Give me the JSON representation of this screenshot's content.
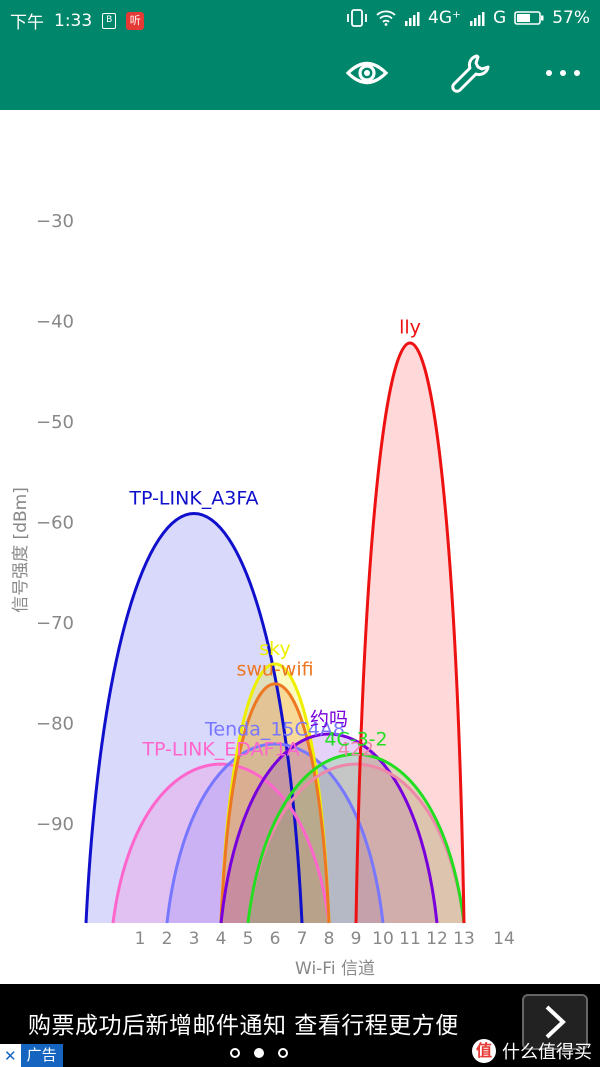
{
  "status": {
    "time_prefix": "下午",
    "time": "1:33",
    "sim_badge": "B",
    "app_badge": "听",
    "net_4g": "4G⁺",
    "net_g": "G",
    "battery": "57%"
  },
  "toolbar": {
    "icons": [
      "eye-icon",
      "wrench-icon",
      "more-icon"
    ]
  },
  "chart_data": {
    "type": "area",
    "ylabel": "信号强度 [dBm]",
    "xlabel": "Wi-Fi 信道",
    "y_ticks": [
      "−30",
      "−40",
      "−50",
      "−60",
      "−70",
      "−80",
      "−90"
    ],
    "y_tick_values": [
      -30,
      -40,
      -50,
      -60,
      -70,
      -80,
      -90
    ],
    "x_ticks": [
      "1",
      "2",
      "3",
      "4",
      "5",
      "6",
      "7",
      "8",
      "9",
      "10",
      "11",
      "12",
      "13",
      "14"
    ],
    "x_tick_values": [
      1,
      2,
      3,
      4,
      5,
      6,
      7,
      8,
      9,
      10,
      11,
      12,
      13,
      14
    ],
    "ylim": [
      -100,
      -25
    ],
    "xlim": [
      -2,
      16
    ],
    "series": [
      {
        "name": "TP-LINK_A3FA",
        "channel": 3,
        "dbm": -59,
        "from": -1,
        "to": 7,
        "color": "#1010cc",
        "fill": "rgba(80,80,240,0.22)"
      },
      {
        "name": "TP-LINK_EDAF1A",
        "channel": 4,
        "dbm": -84,
        "from": 0,
        "to": 8,
        "color": "#ff66cc",
        "fill": "rgba(255,102,204,0.20)"
      },
      {
        "name": "Tenda_15C4A8",
        "channel": 6,
        "dbm": -82,
        "from": 2,
        "to": 10,
        "color": "#7777ff",
        "fill": "rgba(119,119,255,0.20)"
      },
      {
        "name": "sky",
        "channel": 6,
        "dbm": -74,
        "from": 4,
        "to": 8,
        "color": "#eeee00",
        "fill": "rgba(240,240,0,0.25)"
      },
      {
        "name": "swu-wifi",
        "channel": 6,
        "dbm": -76,
        "from": 4,
        "to": 8,
        "color": "#ee7722",
        "fill": "rgba(238,119,34,0.25)"
      },
      {
        "name": "约吗",
        "channel": 8,
        "dbm": -81,
        "from": 4,
        "to": 12,
        "color": "#7700dd",
        "fill": "rgba(119,0,221,0.18)"
      },
      {
        "name": "422",
        "channel": 9,
        "dbm": -84,
        "from": 5,
        "to": 13,
        "color": "#ee88aa",
        "fill": "rgba(238,136,170,0.20)"
      },
      {
        "name": "4C-3-2",
        "channel": 9,
        "dbm": -83,
        "from": 5,
        "to": 13,
        "color": "#22dd22",
        "fill": "rgba(34,221,34,0.18)"
      },
      {
        "name": "lly",
        "channel": 11,
        "dbm": -42,
        "from": 9,
        "to": 13,
        "color": "#ee1111",
        "fill": "rgba(255,80,80,0.22)"
      }
    ]
  },
  "ad": {
    "text": "购票成功后新增邮件通知 查看行程更方便",
    "tag": "广告",
    "close": "✕",
    "watermark": "什么值得买",
    "watermark_logo": "值"
  }
}
